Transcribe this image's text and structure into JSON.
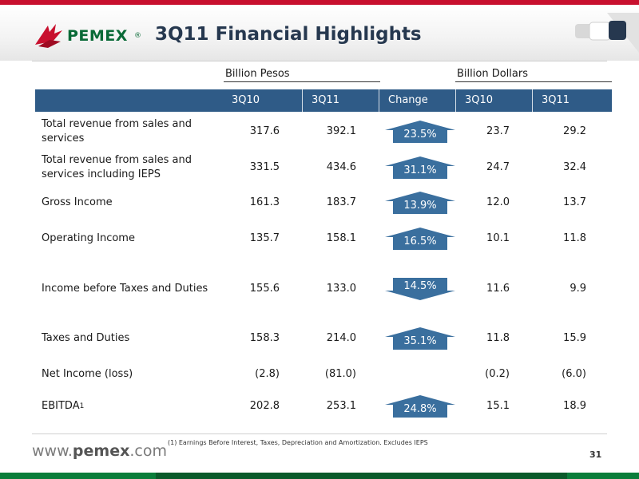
{
  "brand": {
    "name": "PEMEX",
    "reg": "®"
  },
  "title": "3Q11 Financial Highlights",
  "groups": {
    "pesos": "Billion Pesos",
    "dollars": "Billion Dollars"
  },
  "columns": [
    "3Q10",
    "3Q11",
    "Change",
    "3Q10",
    "3Q11"
  ],
  "rows": [
    {
      "label": "Total revenue from sales and services",
      "p10": "317.6",
      "p11": "392.1",
      "change": "23.5%",
      "d10": "23.7",
      "d11": "29.2",
      "direction": "up"
    },
    {
      "label": "Total revenue from sales and services including IEPS",
      "p10": "331.5",
      "p11": "434.6",
      "change": "31.1%",
      "d10": "24.7",
      "d11": "32.4",
      "direction": "up"
    },
    {
      "label": "Gross Income",
      "p10": "161.3",
      "p11": "183.7",
      "change": "13.9%",
      "d10": "12.0",
      "d11": "13.7",
      "direction": "up"
    },
    {
      "label": "Operating Income",
      "p10": "135.7",
      "p11": "158.1",
      "change": "16.5%",
      "d10": "10.1",
      "d11": "11.8",
      "direction": "up"
    },
    {
      "label": "Income before Taxes and Duties",
      "p10": "155.6",
      "p11": "133.0",
      "change": "14.5%",
      "d10": "11.6",
      "d11": "9.9",
      "direction": "down"
    },
    {
      "label": "Taxes and Duties",
      "p10": "158.3",
      "p11": "214.0",
      "change": "35.1%",
      "d10": "11.8",
      "d11": "15.9",
      "direction": "up"
    },
    {
      "label": "Net Income (loss)",
      "p10": "(2.8)",
      "p11": "(81.0)",
      "change": "",
      "d10": "(0.2)",
      "d11": "(6.0)",
      "direction": "none"
    },
    {
      "label": "EBITDA",
      "label_sup": "1",
      "p10": "202.8",
      "p11": "253.1",
      "change": "24.8%",
      "d10": "15.1",
      "d11": "18.9",
      "direction": "up"
    }
  ],
  "footer": {
    "website_prefix": "www.",
    "website_domain": "pemex",
    "website_suffix": ".com",
    "footnote": "(1)    Earnings Before Interest, Taxes, Depreciation and Amortization. Excludes IEPS",
    "page": "31"
  },
  "colors": {
    "header": "#2f5b87",
    "arrow": "#3a6f9e",
    "title": "#26384f",
    "brand_green": "#0a6a37",
    "accent_red": "#c8102e"
  }
}
